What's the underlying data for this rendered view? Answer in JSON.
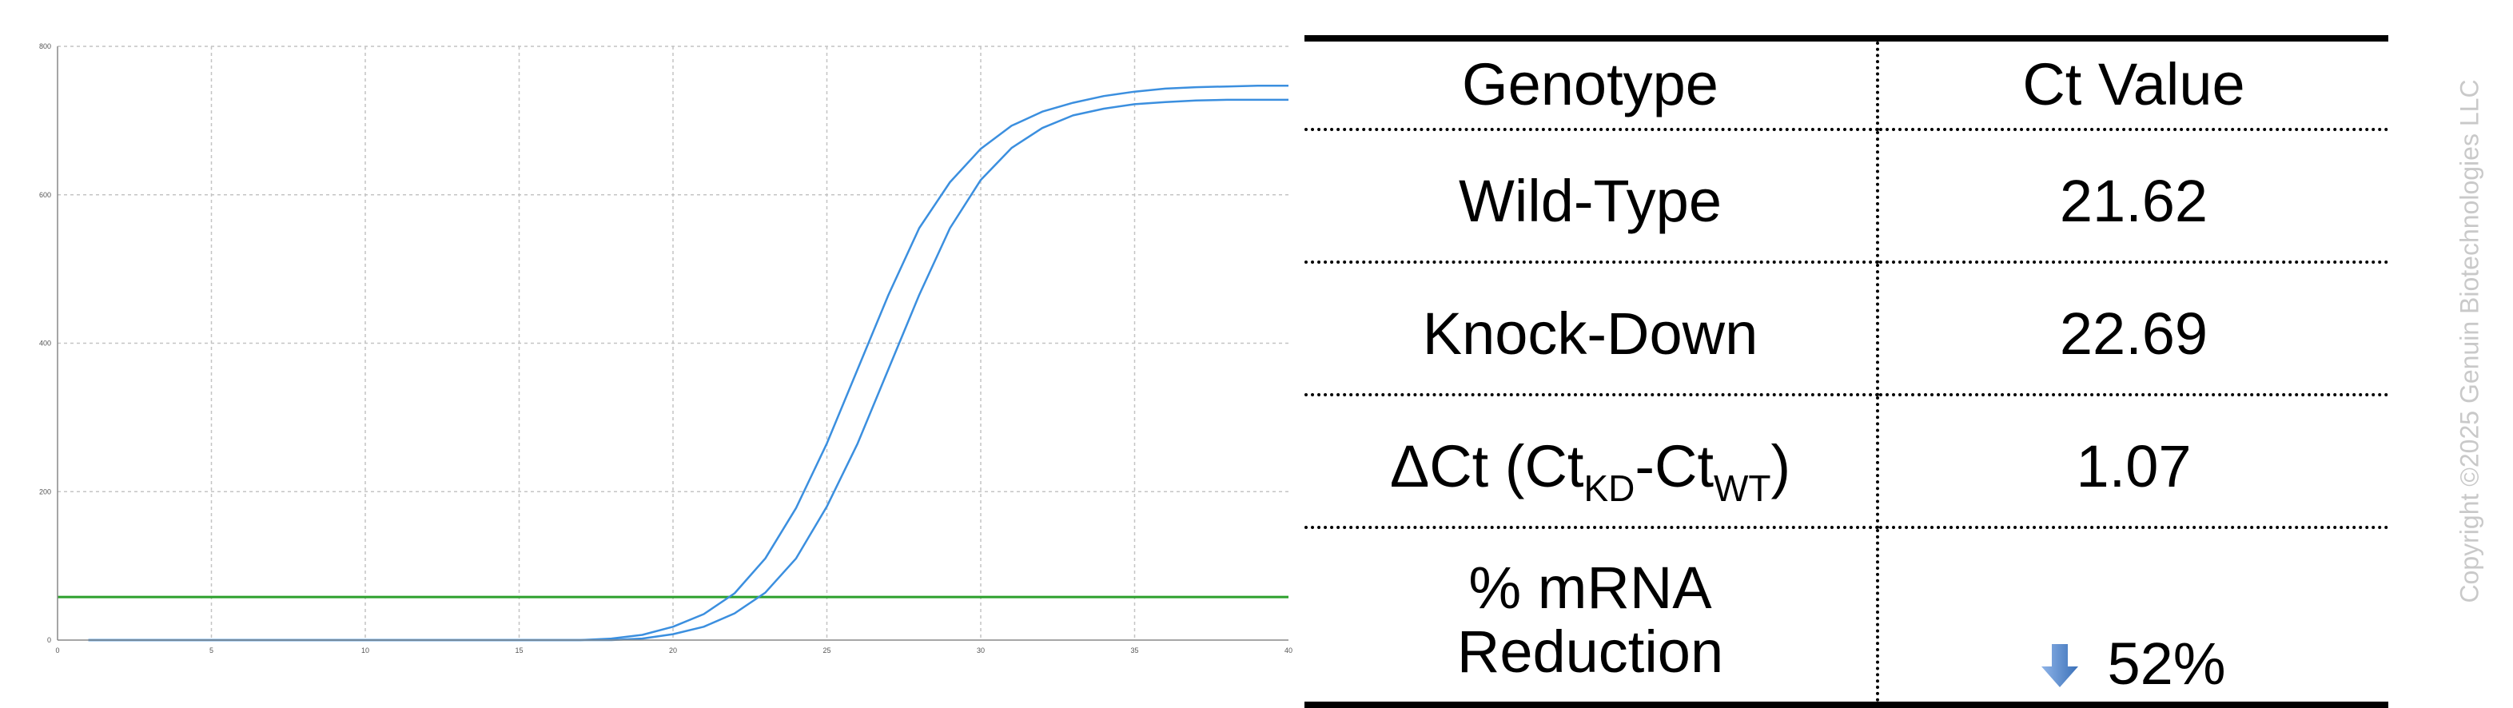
{
  "chart_data": {
    "type": "line",
    "title": "",
    "xlabel": "",
    "ylabel": "",
    "xlim": [
      0,
      40
    ],
    "ylim": [
      0,
      0.8
    ],
    "x_ticks": [
      0,
      5,
      10,
      15,
      20,
      25,
      30,
      35,
      40
    ],
    "x_tick_labels": [
      "0",
      "5",
      "10",
      "15",
      "20",
      "25",
      "30",
      "35",
      "40"
    ],
    "y_ticks": [
      0,
      0.2,
      0.4,
      0.6,
      0.8
    ],
    "y_tick_labels": [
      "0",
      "200",
      "400",
      "600",
      "800"
    ],
    "grid": true,
    "threshold": 0.058,
    "threshold_color": "#2ca02c",
    "series_color": "#3b8fdf",
    "series": [
      {
        "x": [
          1,
          2,
          3,
          4,
          5,
          6,
          7,
          8,
          9,
          10,
          11,
          12,
          13,
          14,
          15,
          16,
          17,
          18,
          19,
          20,
          21,
          22,
          23,
          24,
          25,
          26,
          27,
          28,
          29,
          30,
          31,
          32,
          33,
          34,
          35,
          36,
          37,
          38,
          39,
          40
        ],
        "y": [
          0,
          0,
          0,
          0,
          0,
          0,
          0,
          0,
          0,
          0,
          0,
          0,
          0,
          0,
          0,
          0,
          0,
          0.002,
          0.007,
          0.018,
          0.035,
          0.063,
          0.11,
          0.178,
          0.265,
          0.365,
          0.465,
          0.555,
          0.617,
          0.662,
          0.693,
          0.712,
          0.724,
          0.733,
          0.739,
          0.743,
          0.745,
          0.746,
          0.747,
          0.747
        ]
      },
      {
        "x": [
          1,
          2,
          3,
          4,
          5,
          6,
          7,
          8,
          9,
          10,
          11,
          12,
          13,
          14,
          15,
          16,
          17,
          18,
          19,
          20,
          21,
          22,
          23,
          24,
          25,
          26,
          27,
          28,
          29,
          30,
          31,
          32,
          33,
          34,
          35,
          36,
          37,
          38,
          39,
          40
        ],
        "y": [
          0,
          0,
          0,
          0,
          0,
          0,
          0,
          0,
          0,
          0,
          0,
          0,
          0,
          0,
          0,
          0,
          0,
          0,
          0.002,
          0.008,
          0.018,
          0.036,
          0.064,
          0.11,
          0.18,
          0.265,
          0.365,
          0.465,
          0.555,
          0.62,
          0.663,
          0.69,
          0.707,
          0.716,
          0.722,
          0.725,
          0.727,
          0.728,
          0.728,
          0.728
        ]
      }
    ]
  },
  "table": {
    "headers": [
      "Genotype",
      "Ct Value"
    ],
    "rows": {
      "wild_type": {
        "label": "Wild-Type",
        "value": "21.62"
      },
      "knock_down": {
        "label": "Knock-Down",
        "value": "22.69"
      },
      "delta_ct": {
        "label_prefix": "ΔCt (Ct",
        "sub_kd": "KD",
        "label_mid": "-Ct",
        "sub_wt": "WT",
        "label_suffix": ")",
        "value": "1.07"
      },
      "reduction": {
        "label_line1": "% mRNA",
        "label_line2": "Reduction",
        "value": "52%",
        "arrow_icon": "down-arrow-icon",
        "arrow_color": "#3a70b8"
      }
    }
  },
  "copyright": "Copyright ©2025 Genuin Biotechnologies LLC"
}
